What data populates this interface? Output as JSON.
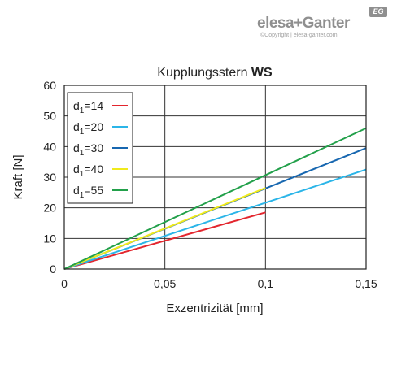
{
  "brand": {
    "name": "elesa+Ganter",
    "badge": "EG",
    "copyright": "©Copyright | elesa-ganter.com"
  },
  "chart_data": {
    "type": "line",
    "title_main": "Kupplungsstern ",
    "title_bold": "WS",
    "xlabel": "Exzentrizität [mm]",
    "ylabel": "Kraft [N]",
    "xlim": [
      0,
      0.15
    ],
    "ylim": [
      0,
      60
    ],
    "x_ticks": [
      0,
      0.05,
      0.1,
      0.15
    ],
    "x_tick_labels": [
      "0",
      "0,05",
      "0,1",
      "0,15"
    ],
    "y_ticks": [
      0,
      10,
      20,
      30,
      40,
      50,
      60
    ],
    "y_tick_labels": [
      "0",
      "10",
      "20",
      "30",
      "40",
      "50",
      "60"
    ],
    "grid": true,
    "legend_position": "top-left",
    "series": [
      {
        "sub": "14",
        "color": "#e3262e",
        "x": [
          0,
          0.1
        ],
        "y": [
          0,
          18.5
        ]
      },
      {
        "sub": "20",
        "color": "#2bb5e8",
        "x": [
          0,
          0.15
        ],
        "y": [
          0,
          32.5
        ]
      },
      {
        "sub": "30",
        "color": "#1767b0",
        "x": [
          0,
          0.15
        ],
        "y": [
          0,
          39.5
        ]
      },
      {
        "sub": "40",
        "color": "#f0ea1c",
        "x": [
          0,
          0.1
        ],
        "y": [
          0,
          26.5
        ]
      },
      {
        "sub": "55",
        "color": "#22a04a",
        "x": [
          0,
          0.15
        ],
        "y": [
          0,
          46
        ]
      }
    ],
    "legend_prefix": "d",
    "legend_subscript": "1",
    "legend_eq": "="
  }
}
